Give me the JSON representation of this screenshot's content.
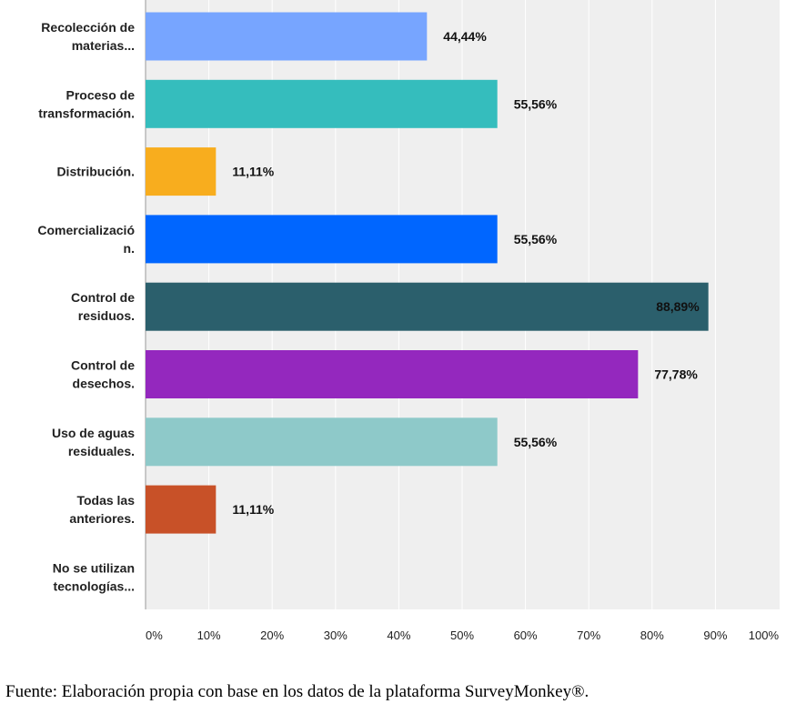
{
  "chart_data": {
    "type": "bar",
    "orientation": "horizontal",
    "categories": [
      [
        "Recolección de",
        "materias..."
      ],
      [
        "Proceso de",
        "transformación."
      ],
      [
        "Distribución."
      ],
      [
        "Comercializació",
        "n."
      ],
      [
        "Control de",
        "residuos."
      ],
      [
        "Control de",
        "desechos."
      ],
      [
        "Uso de aguas",
        "residuales."
      ],
      [
        "Todas las",
        "anteriores."
      ],
      [
        "No se utilizan",
        "tecnologías..."
      ]
    ],
    "values": [
      44.44,
      55.56,
      11.11,
      55.56,
      88.89,
      77.78,
      55.56,
      11.11,
      0
    ],
    "value_labels": [
      "44,44%",
      "55,56%",
      "11,11%",
      "55,56%",
      "88,89%",
      "77,78%",
      "55,56%",
      "11,11%",
      ""
    ],
    "colors": [
      "#77a5ff",
      "#35bdbd",
      "#f8ad1e",
      "#0066ff",
      "#2b5f6c",
      "#9428be",
      "#8ec9c9",
      "#c85128",
      "#999999"
    ],
    "x_ticks": [
      "0%",
      "10%",
      "20%",
      "30%",
      "40%",
      "50%",
      "60%",
      "70%",
      "80%",
      "90%",
      "100%"
    ],
    "xlim": [
      0,
      100
    ],
    "grid": true,
    "plot_background": "#efefef",
    "grid_color": "#ffffff"
  },
  "source_note": "Fuente: Elaboración propia con base en los datos de la plataforma SurveyMonkey®."
}
